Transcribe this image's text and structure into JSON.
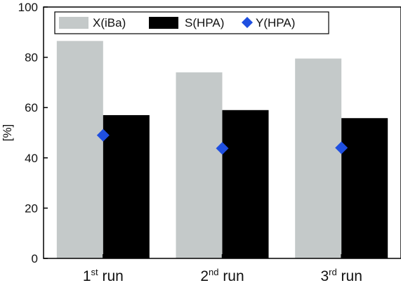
{
  "chart_data": {
    "type": "bar",
    "categories": [
      {
        "num": "1",
        "sup": "st",
        "rest": " run"
      },
      {
        "num": "2",
        "sup": "nd",
        "rest": " run"
      },
      {
        "num": "3",
        "sup": "rd",
        "rest": " run"
      }
    ],
    "series": [
      {
        "name": "X(iBa)",
        "kind": "bar",
        "color": "#c4c9c9",
        "values": [
          86.5,
          74.0,
          79.5
        ]
      },
      {
        "name": "S(HPA)",
        "kind": "bar",
        "color": "#000000",
        "values": [
          57.0,
          59.0,
          55.8
        ]
      },
      {
        "name": "Y(HPA)",
        "kind": "marker",
        "marker": "diamond",
        "color": "#1f4fe0",
        "values": [
          49.0,
          43.8,
          44.0
        ]
      }
    ],
    "ylabel": "[%]",
    "xlabel": "",
    "title": "",
    "ylim": [
      0,
      100
    ],
    "yticks": [
      0,
      20,
      40,
      60,
      80,
      100
    ],
    "legend_position": "top",
    "grid": false
  }
}
